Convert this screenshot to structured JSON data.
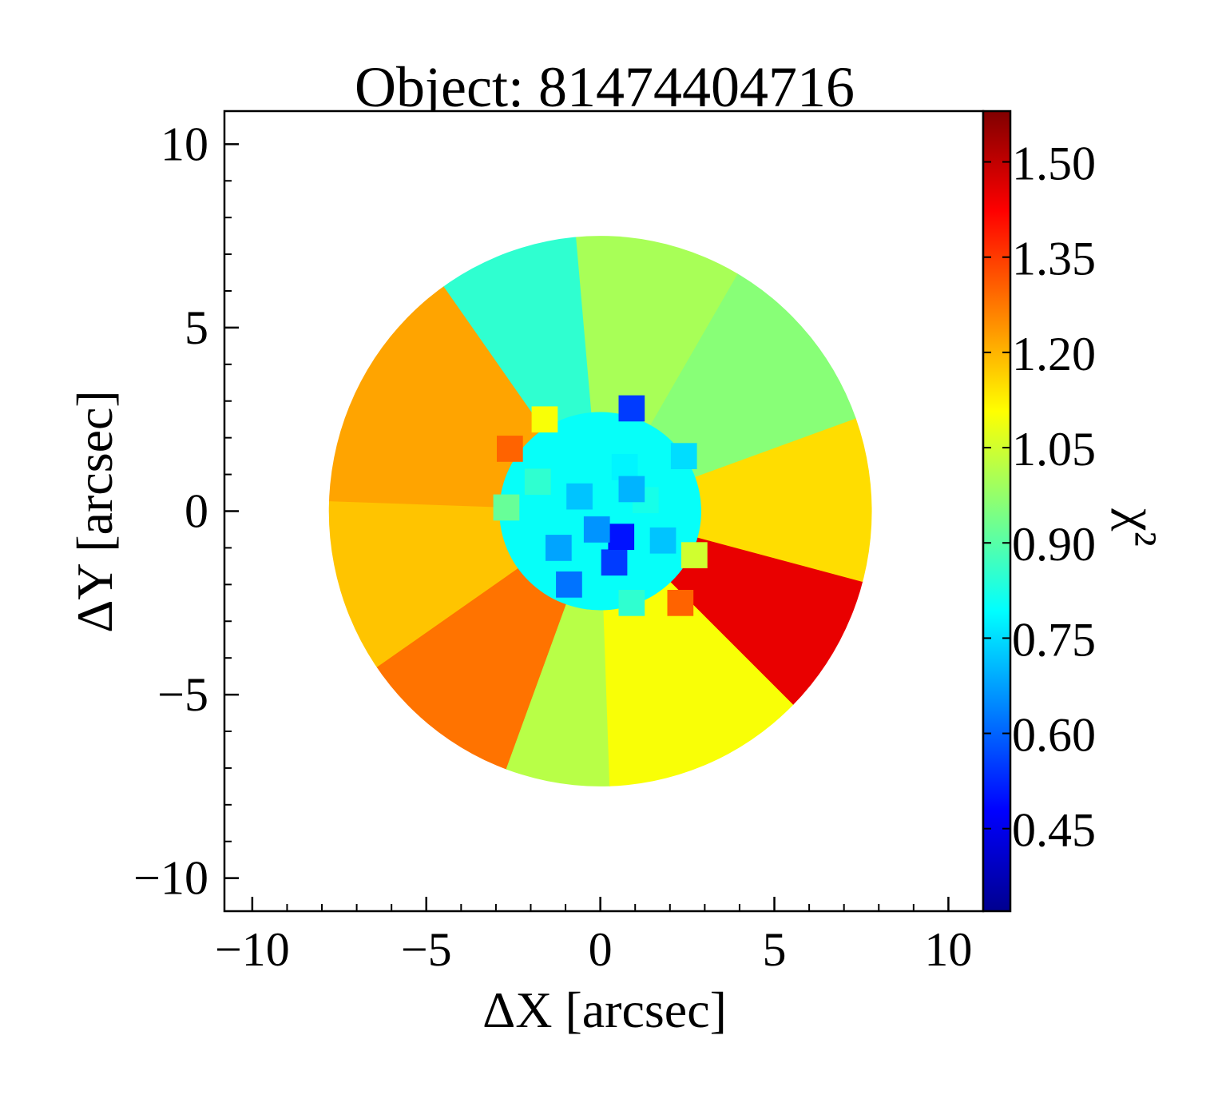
{
  "chart_data": {
    "type": "heatmap",
    "title": "Object: 81474404716",
    "xlabel": "ΔX [arcsec]",
    "ylabel": "ΔY [arcsec]",
    "colorbar_label": "χ²",
    "xlim": [
      -10.8,
      11.0
    ],
    "ylim": [
      -10.9,
      10.9
    ],
    "x_ticks": [
      -10,
      -5,
      0,
      5,
      10
    ],
    "x_tick_labels": [
      "−10",
      "−5",
      "0",
      "5",
      "10"
    ],
    "y_ticks": [
      10,
      5,
      0,
      -5,
      -10
    ],
    "y_tick_labels": [
      "10",
      "5",
      "0",
      "−5",
      "−10"
    ],
    "colorbar_range": [
      0.32,
      1.58
    ],
    "colorbar_ticks": [
      1.5,
      1.35,
      1.2,
      1.05,
      0.9,
      0.75,
      0.6,
      0.45
    ],
    "colorbar_tick_labels": [
      "1.50",
      "1.35",
      "1.20",
      "1.05",
      "0.90",
      "0.75",
      "0.60",
      "0.45"
    ],
    "colormap": "jet",
    "ellipse": {
      "center": [
        0.0,
        0.0
      ],
      "semi_axes": [
        7.8,
        7.5
      ]
    },
    "regions": [
      {
        "name": "top-left-cyan",
        "value": 0.85,
        "from_deg": 95,
        "to_deg": 125
      },
      {
        "name": "upper-left-orange",
        "value": 1.22,
        "from_deg": 125,
        "to_deg": 178
      },
      {
        "name": "left-gold",
        "value": 1.18,
        "from_deg": 178,
        "to_deg": 215
      },
      {
        "name": "lower-left-orange",
        "value": 1.28,
        "from_deg": 215,
        "to_deg": 250
      },
      {
        "name": "bottom-green",
        "value": 1.02,
        "from_deg": 250,
        "to_deg": 272
      },
      {
        "name": "bottom-yellow-green",
        "value": 1.1,
        "from_deg": 272,
        "to_deg": 315
      },
      {
        "name": "lower-right-red",
        "value": 1.45,
        "from_deg": 315,
        "to_deg": 345
      },
      {
        "name": "right-yellow",
        "value": 1.15,
        "from_deg": 345,
        "to_deg": 380
      },
      {
        "name": "upper-right-green",
        "value": 0.96,
        "from_deg": 20,
        "to_deg": 60
      },
      {
        "name": "top-green",
        "value": 1.0,
        "from_deg": 60,
        "to_deg": 95
      }
    ],
    "inner_bins": [
      {
        "x": 0.9,
        "y": 2.8,
        "value": 0.55
      },
      {
        "x": -2.6,
        "y": 1.7,
        "value": 1.3
      },
      {
        "x": -1.6,
        "y": 2.5,
        "value": 1.1
      },
      {
        "x": 2.4,
        "y": 1.5,
        "value": 0.75
      },
      {
        "x": 2.3,
        "y": -2.5,
        "value": 1.3
      },
      {
        "x": 2.7,
        "y": -1.2,
        "value": 1.05
      },
      {
        "x": -2.7,
        "y": 0.1,
        "value": 0.92
      },
      {
        "x": -1.8,
        "y": 0.8,
        "value": 0.85
      },
      {
        "x": -1.2,
        "y": -1.0,
        "value": 0.68
      },
      {
        "x": -0.9,
        "y": -2.0,
        "value": 0.62
      },
      {
        "x": 0.9,
        "y": -2.5,
        "value": 0.85
      },
      {
        "x": 1.8,
        "y": -0.8,
        "value": 0.72
      },
      {
        "x": -0.4,
        "y": 1.5,
        "value": 0.8
      },
      {
        "x": 0.7,
        "y": 1.2,
        "value": 0.78
      },
      {
        "x": 0.4,
        "y": -1.4,
        "value": 0.55
      },
      {
        "x": 0.6,
        "y": -0.7,
        "value": 0.5
      },
      {
        "x": -0.6,
        "y": 0.4,
        "value": 0.72
      },
      {
        "x": 1.3,
        "y": 0.3,
        "value": 0.82
      },
      {
        "x": -0.1,
        "y": -0.5,
        "value": 0.66
      },
      {
        "x": 0.9,
        "y": 0.6,
        "value": 0.7
      }
    ]
  }
}
